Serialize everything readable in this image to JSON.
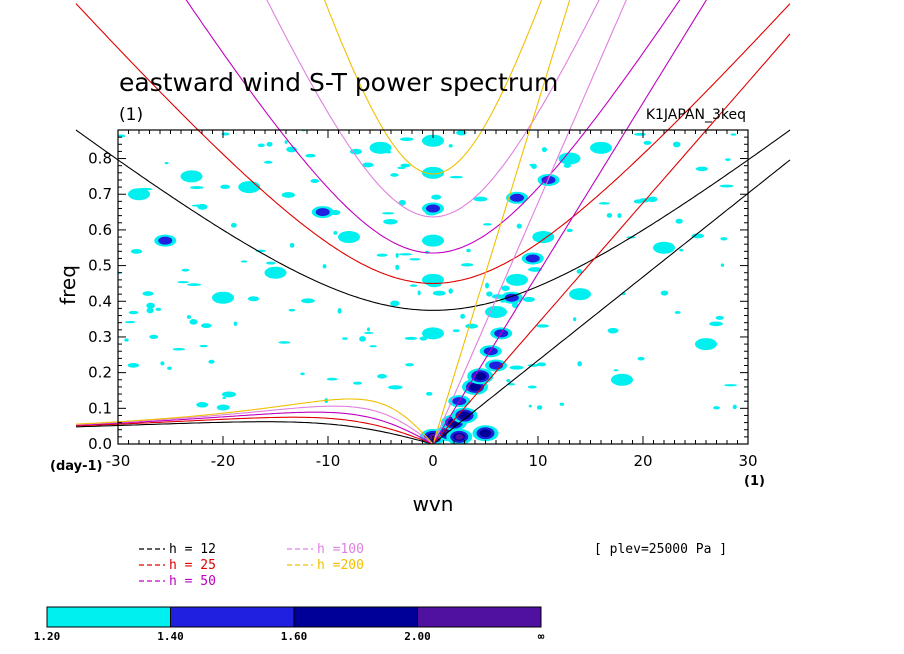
{
  "chart_data": {
    "type": "heatmap",
    "title": "eastward wind S-T power spectrum",
    "subtitle_left": "(1)",
    "subtitle_right": "K1JAPAN_3keq",
    "xlabel": "wvn",
    "ylabel": "freq",
    "x_unit": "(1)",
    "y_unit": "(day-1)",
    "xlim": [
      -30,
      30
    ],
    "ylim": [
      0,
      0.88
    ],
    "x_ticks": [
      -30,
      -20,
      -10,
      0,
      10,
      20,
      30
    ],
    "x_tick_labels": [
      "-30",
      "-20",
      "-10",
      "0",
      "10",
      "20",
      "30"
    ],
    "y_ticks": [
      0,
      0.1,
      0.2,
      0.3,
      0.4,
      0.5,
      0.6,
      0.7,
      0.8
    ],
    "y_tick_labels": [
      "0.0",
      "0.1",
      "0.2",
      "0.3",
      "0.4",
      "0.5",
      "0.6",
      "0.7",
      "0.8"
    ],
    "annotation": "[ plev=25000 Pa ]",
    "dispersion_legend": [
      {
        "label": "h = 12",
        "h": 12,
        "color": "#000000"
      },
      {
        "label": "h = 25",
        "h": 25,
        "color": "#e00000"
      },
      {
        "label": "h = 50",
        "h": 50,
        "color": "#c000c0"
      },
      {
        "label": "h =100",
        "h": 100,
        "color": "#e080e0"
      },
      {
        "label": "h =200",
        "h": 200,
        "color": "#f0c000"
      }
    ],
    "colorbar": {
      "levels": [
        "1.20",
        "1.40",
        "1.60",
        "2.00",
        "∞"
      ],
      "colors": [
        "#00f0f0",
        "#2020e0",
        "#000098",
        "#5010a0"
      ]
    },
    "spectral_features": [
      {
        "x": 0.0,
        "y": 0.02,
        "level": 4
      },
      {
        "x": 1.5,
        "y": 0.03,
        "level": 4
      },
      {
        "x": 2.5,
        "y": 0.02,
        "level": 4
      },
      {
        "x": 5.0,
        "y": 0.03,
        "level": 3
      },
      {
        "x": 2.0,
        "y": 0.06,
        "level": 3
      },
      {
        "x": 3.0,
        "y": 0.08,
        "level": 3
      },
      {
        "x": 2.5,
        "y": 0.12,
        "level": 2
      },
      {
        "x": 4.0,
        "y": 0.16,
        "level": 3
      },
      {
        "x": 4.5,
        "y": 0.19,
        "level": 3
      },
      {
        "x": 6.0,
        "y": 0.22,
        "level": 2
      },
      {
        "x": 5.5,
        "y": 0.26,
        "level": 2
      },
      {
        "x": 6.5,
        "y": 0.31,
        "level": 2
      },
      {
        "x": 6.0,
        "y": 0.37,
        "level": 1
      },
      {
        "x": 7.5,
        "y": 0.41,
        "level": 2
      },
      {
        "x": 8.0,
        "y": 0.46,
        "level": 1
      },
      {
        "x": 9.5,
        "y": 0.52,
        "level": 2
      },
      {
        "x": 10.5,
        "y": 0.58,
        "level": 1
      },
      {
        "x": 8.0,
        "y": 0.69,
        "level": 2
      },
      {
        "x": 11.0,
        "y": 0.74,
        "level": 2
      },
      {
        "x": 13.0,
        "y": 0.8,
        "level": 1
      },
      {
        "x": 0.0,
        "y": 0.85,
        "level": 1
      },
      {
        "x": 0.0,
        "y": 0.76,
        "level": 1
      },
      {
        "x": 0.0,
        "y": 0.66,
        "level": 2
      },
      {
        "x": 0.0,
        "y": 0.57,
        "level": 1
      },
      {
        "x": 0.0,
        "y": 0.46,
        "level": 1
      },
      {
        "x": 0.0,
        "y": 0.31,
        "level": 1
      },
      {
        "x": -10.5,
        "y": 0.65,
        "level": 2
      },
      {
        "x": -25.5,
        "y": 0.57,
        "level": 2
      },
      {
        "x": -17.5,
        "y": 0.72,
        "level": 1
      },
      {
        "x": -23.0,
        "y": 0.75,
        "level": 1
      },
      {
        "x": -28.0,
        "y": 0.7,
        "level": 1
      },
      {
        "x": -15.0,
        "y": 0.48,
        "level": 1
      },
      {
        "x": -8.0,
        "y": 0.58,
        "level": 1
      },
      {
        "x": -20.0,
        "y": 0.41,
        "level": 1
      },
      {
        "x": 14.0,
        "y": 0.42,
        "level": 1
      },
      {
        "x": 22.0,
        "y": 0.55,
        "level": 1
      },
      {
        "x": 26.0,
        "y": 0.28,
        "level": 1
      },
      {
        "x": 18.0,
        "y": 0.18,
        "level": 1
      },
      {
        "x": -5.0,
        "y": 0.83,
        "level": 1
      },
      {
        "x": 16.0,
        "y": 0.83,
        "level": 1
      }
    ]
  }
}
